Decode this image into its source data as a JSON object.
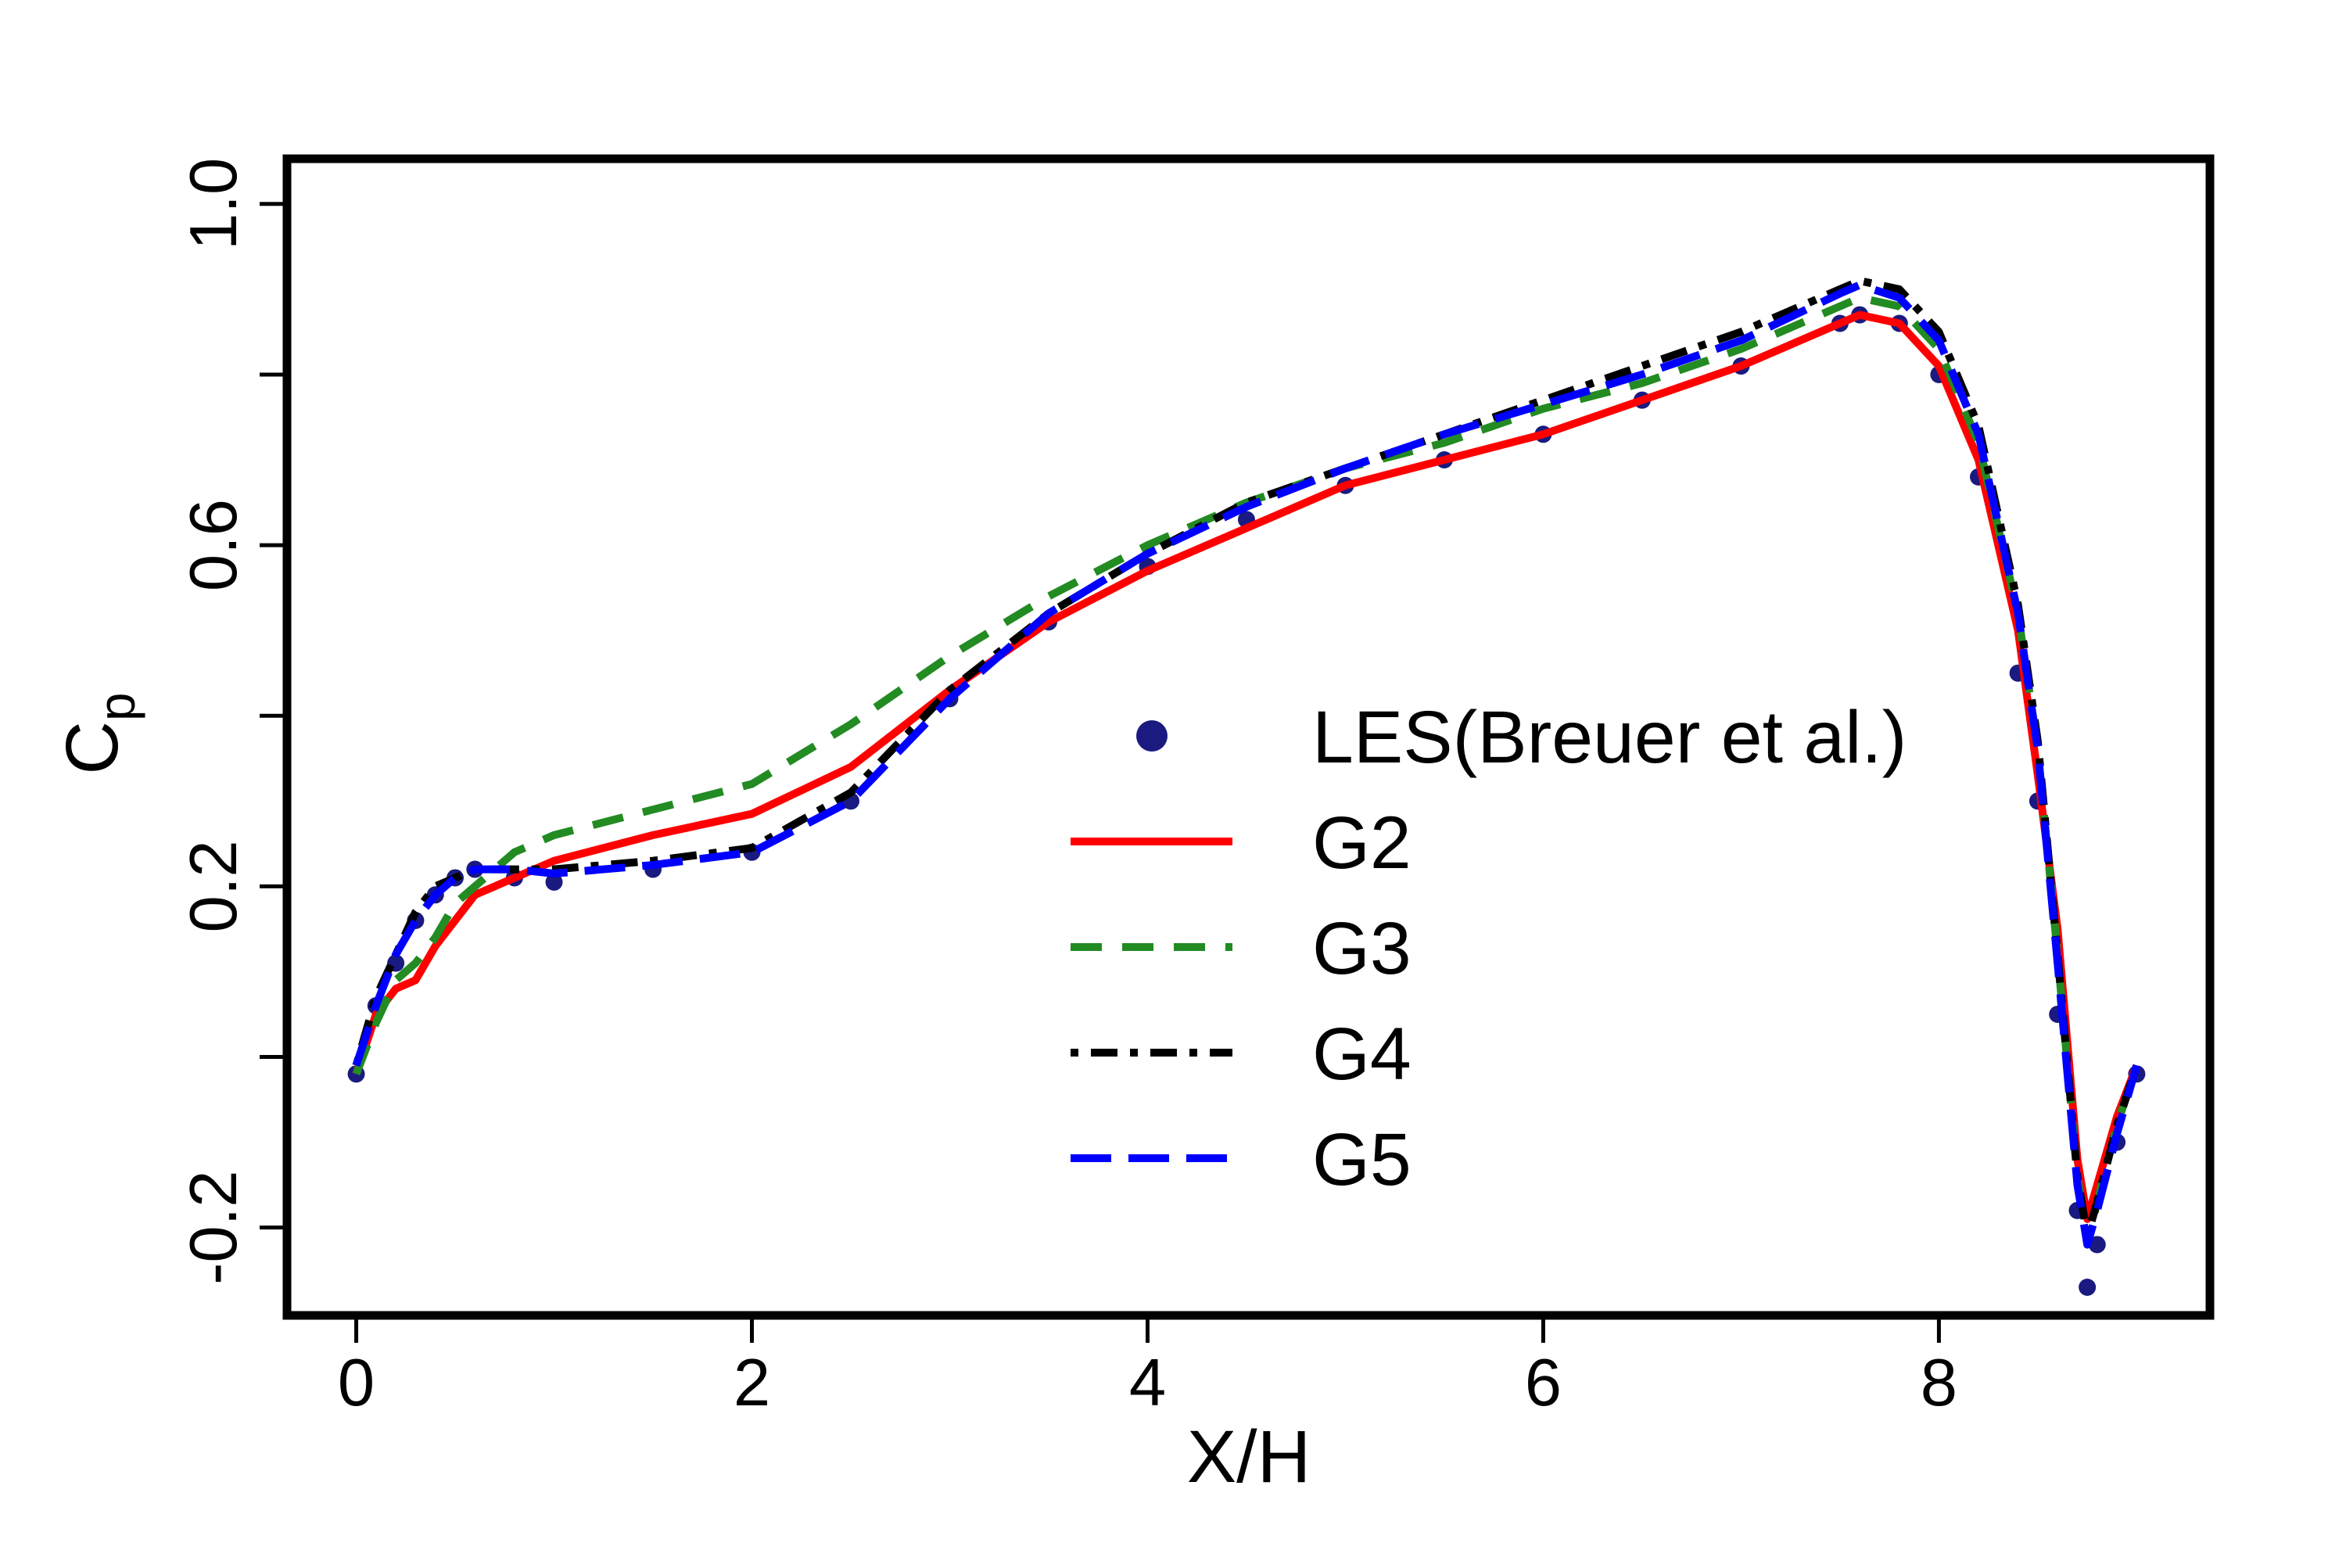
{
  "chart_data": {
    "type": "line",
    "xlabel": "X/H",
    "ylabel": "C",
    "ylabel_sub": "p",
    "xlim": [
      -0.35,
      9.37
    ],
    "ylim": [
      -0.303,
      1.053
    ],
    "xticks": [
      0,
      2,
      4,
      6,
      8
    ],
    "yticks": [
      -0.2,
      0.2,
      0.6,
      {
        "value": 1,
        "label": "1.0"
      }
    ],
    "yminorticks": [
      0,
      0.4,
      0.8
    ],
    "legend": "center",
    "x": [
      0,
      0.1,
      0.2,
      0.3,
      0.4,
      0.5,
      0.6,
      0.8,
      1.0,
      1.5,
      2.0,
      2.5,
      3.0,
      3.5,
      4.0,
      4.5,
      5.0,
      5.5,
      6.0,
      6.5,
      7.0,
      7.5,
      7.6,
      7.8,
      8.0,
      8.2,
      8.4,
      8.5,
      8.6,
      8.7,
      8.75,
      8.8,
      8.9,
      9.0
    ],
    "series": [
      {
        "name": "LES(Breuer et al.)",
        "color": "#1a1a80",
        "style": "points",
        "values": [
          -0.02,
          0.06,
          0.11,
          0.16,
          0.19,
          0.21,
          0.22,
          0.21,
          0.205,
          0.22,
          0.24,
          0.3,
          0.42,
          0.51,
          0.575,
          0.63,
          0.67,
          0.7,
          0.73,
          0.77,
          0.81,
          0.86,
          0.87,
          0.86,
          0.8,
          0.68,
          0.45,
          0.3,
          0.05,
          -0.18,
          -0.27,
          -0.22,
          -0.1,
          -0.02
        ]
      },
      {
        "name": "G2",
        "color": "#ff0000",
        "style": "solid",
        "values": [
          -0.02,
          0.05,
          0.08,
          0.09,
          0.13,
          0.16,
          0.19,
          0.21,
          0.23,
          0.26,
          0.285,
          0.34,
          0.43,
          0.51,
          0.57,
          0.62,
          0.67,
          0.7,
          0.73,
          0.77,
          0.81,
          0.86,
          0.87,
          0.86,
          0.81,
          0.7,
          0.5,
          0.33,
          0.15,
          -0.12,
          -0.19,
          -0.15,
          -0.07,
          -0.01
        ]
      },
      {
        "name": "G3",
        "color": "#228b22",
        "style": "dashed",
        "values": [
          -0.02,
          0.04,
          0.09,
          0.11,
          0.14,
          0.18,
          0.2,
          0.24,
          0.26,
          0.29,
          0.32,
          0.39,
          0.47,
          0.54,
          0.6,
          0.65,
          0.69,
          0.72,
          0.76,
          0.79,
          0.83,
          0.88,
          0.89,
          0.88,
          0.83,
          0.72,
          0.52,
          0.36,
          0.12,
          -0.14,
          -0.22,
          -0.17,
          -0.08,
          -0.01
        ]
      },
      {
        "name": "G4",
        "color": "#000000",
        "style": "dotdash",
        "values": [
          -0.01,
          0.07,
          0.12,
          0.17,
          0.2,
          0.21,
          0.22,
          0.22,
          0.22,
          0.23,
          0.245,
          0.31,
          0.43,
          0.52,
          0.59,
          0.65,
          0.69,
          0.73,
          0.77,
          0.81,
          0.85,
          0.9,
          0.91,
          0.9,
          0.85,
          0.74,
          0.53,
          0.37,
          0.12,
          -0.14,
          -0.21,
          -0.17,
          -0.08,
          -0.01
        ]
      },
      {
        "name": "G5",
        "color": "#0000ff",
        "style": "longdash",
        "values": [
          -0.01,
          0.06,
          0.12,
          0.16,
          0.19,
          0.21,
          0.22,
          0.22,
          0.215,
          0.225,
          0.24,
          0.3,
          0.42,
          0.52,
          0.59,
          0.645,
          0.69,
          0.73,
          0.765,
          0.8,
          0.84,
          0.895,
          0.905,
          0.89,
          0.84,
          0.73,
          0.52,
          0.36,
          0.11,
          -0.15,
          -0.22,
          -0.18,
          -0.09,
          -0.01
        ]
      }
    ]
  }
}
